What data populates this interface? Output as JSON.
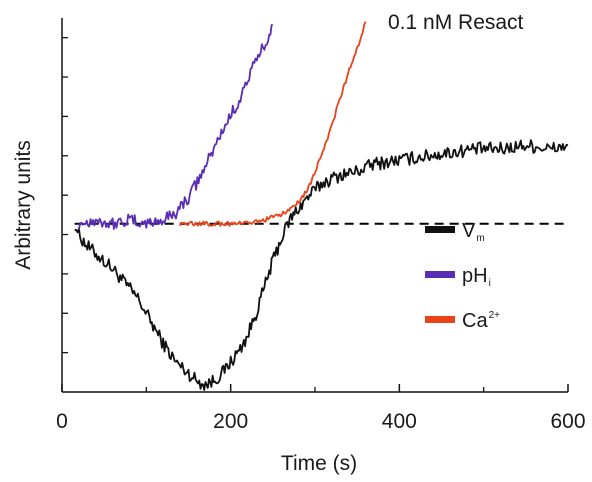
{
  "chart_data": {
    "type": "line",
    "title": "",
    "annotation": "0.1 nM Resact",
    "xlabel": "Time (s)",
    "ylabel": "Arbitrary units",
    "xlim": [
      0,
      600
    ],
    "ylim": [
      0,
      100
    ],
    "x_ticks": [
      0,
      200,
      400,
      600
    ],
    "x_minor_ticks": [
      100,
      300,
      500
    ],
    "baseline": {
      "y": 45,
      "x_start": 15,
      "x_end": 600,
      "style": "dashed",
      "color": "#000000"
    },
    "legend": {
      "position": "right"
    },
    "series": [
      {
        "name": "V",
        "name_subscript": "m",
        "color": "#111111",
        "noise": 1.8,
        "x": [
          15,
          20,
          30,
          45,
          60,
          75,
          90,
          105,
          120,
          135,
          150,
          160,
          170,
          180,
          190,
          200,
          210,
          220,
          230,
          240,
          250,
          260,
          270,
          280,
          295,
          310,
          330,
          350,
          370,
          400,
          430,
          460,
          490,
          520,
          550,
          580,
          600
        ],
        "y": [
          45,
          42,
          39,
          36,
          33,
          29,
          25,
          19,
          13,
          8,
          5,
          3,
          2,
          3,
          5,
          8,
          11,
          15,
          21,
          28,
          35,
          41,
          46,
          49,
          53,
          56,
          58,
          59,
          61,
          62,
          63,
          64,
          65,
          65,
          66,
          65,
          66
        ]
      },
      {
        "name": "pH",
        "name_subscript": "i",
        "color": "#5b2db4",
        "noise": 1.6,
        "x": [
          20,
          40,
          60,
          80,
          100,
          120,
          135,
          150,
          165,
          180,
          195,
          210,
          225,
          240,
          250
        ],
        "y": [
          45,
          46,
          45,
          46,
          45,
          46,
          48,
          52,
          58,
          65,
          72,
          78,
          86,
          93,
          98
        ]
      },
      {
        "name": "Ca",
        "name_superscript": "2+",
        "color": "#e8431b",
        "noise": 0.6,
        "x": [
          140,
          160,
          180,
          200,
          220,
          240,
          255,
          265,
          275,
          285,
          295,
          305,
          315,
          325,
          335,
          345,
          355,
          360
        ],
        "y": [
          45,
          45,
          45,
          45,
          45,
          46,
          47,
          48,
          50,
          52,
          56,
          62,
          68,
          75,
          82,
          89,
          95,
          99
        ]
      }
    ]
  }
}
